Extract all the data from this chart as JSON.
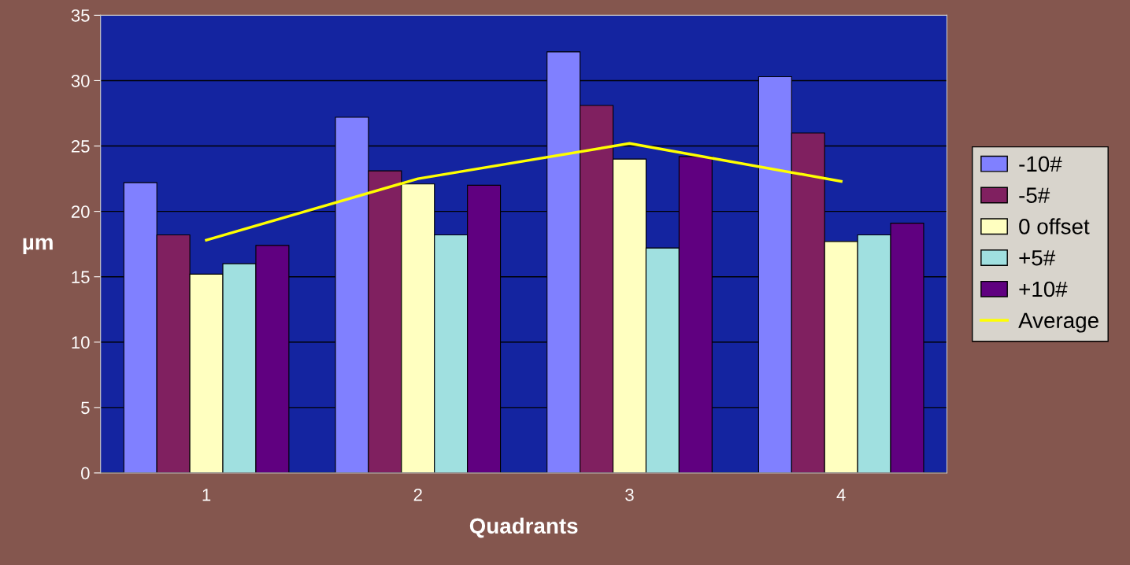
{
  "chart_data": {
    "type": "bar",
    "xlabel": "Quadrants",
    "ylabel": "µm",
    "categories": [
      "1",
      "2",
      "3",
      "4"
    ],
    "series": [
      {
        "name": "-10#",
        "color": "#8080ff",
        "values": [
          22.2,
          27.2,
          32.2,
          30.3
        ]
      },
      {
        "name": "-5#",
        "color": "#802060",
        "values": [
          18.2,
          23.1,
          28.1,
          26.0
        ]
      },
      {
        "name": "0 offset",
        "color": "#ffffc0",
        "values": [
          15.2,
          22.1,
          24.0,
          17.7
        ]
      },
      {
        "name": "+5#",
        "color": "#a0e0e0",
        "values": [
          16.0,
          18.2,
          17.2,
          18.2
        ]
      },
      {
        "name": "+10#",
        "color": "#600080",
        "values": [
          17.4,
          22.0,
          24.2,
          19.1
        ]
      },
      {
        "name": "Average",
        "color": "#ffff00",
        "type": "line",
        "values": [
          17.8,
          22.5,
          25.2,
          22.3
        ]
      }
    ],
    "ylim": [
      0,
      35
    ],
    "yticks": [
      0,
      5,
      10,
      15,
      20,
      25,
      30,
      35
    ],
    "grid": "y",
    "legend": "right",
    "marker": "none",
    "line_style": "solid"
  }
}
